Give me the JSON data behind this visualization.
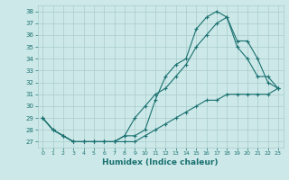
{
  "xlabel": "Humidex (Indice chaleur)",
  "background_color": "#cce8e8",
  "grid_color": "#aacccc",
  "line_color": "#1a7070",
  "xlim": [
    -0.5,
    23.5
  ],
  "ylim": [
    26.5,
    38.5
  ],
  "xticks": [
    0,
    1,
    2,
    3,
    4,
    5,
    6,
    7,
    8,
    9,
    10,
    11,
    12,
    13,
    14,
    15,
    16,
    17,
    18,
    19,
    20,
    21,
    22,
    23
  ],
  "yticks": [
    27,
    28,
    29,
    30,
    31,
    32,
    33,
    34,
    35,
    36,
    37,
    38
  ],
  "line1_x": [
    0,
    1,
    2,
    3,
    4,
    5,
    6,
    7,
    8,
    9,
    10,
    11,
    12,
    13,
    14,
    15,
    16,
    17,
    18,
    19,
    20,
    21,
    22,
    23
  ],
  "line1_y": [
    29.0,
    28.0,
    27.5,
    27.0,
    27.0,
    27.0,
    27.0,
    27.0,
    27.5,
    27.5,
    28.0,
    30.5,
    32.5,
    33.5,
    34.0,
    36.5,
    37.5,
    38.0,
    37.5,
    35.0,
    34.0,
    32.5,
    32.5,
    31.5
  ],
  "line2_x": [
    0,
    1,
    2,
    3,
    4,
    5,
    6,
    7,
    8,
    9,
    10,
    11,
    12,
    13,
    14,
    15,
    16,
    17,
    18,
    19,
    20,
    21,
    22,
    23
  ],
  "line2_y": [
    29.0,
    28.0,
    27.5,
    27.0,
    27.0,
    27.0,
    27.0,
    27.0,
    27.5,
    29.0,
    30.0,
    31.0,
    31.5,
    32.5,
    33.5,
    35.0,
    36.0,
    37.0,
    37.5,
    35.5,
    35.5,
    34.0,
    32.0,
    31.5
  ],
  "line3_x": [
    0,
    1,
    2,
    3,
    4,
    5,
    6,
    7,
    8,
    9,
    10,
    11,
    12,
    13,
    14,
    15,
    16,
    17,
    18,
    19,
    20,
    21,
    22,
    23
  ],
  "line3_y": [
    29.0,
    28.0,
    27.5,
    27.0,
    27.0,
    27.0,
    27.0,
    27.0,
    27.0,
    27.0,
    27.5,
    28.0,
    28.5,
    29.0,
    29.5,
    30.0,
    30.5,
    30.5,
    31.0,
    31.0,
    31.0,
    31.0,
    31.0,
    31.5
  ]
}
